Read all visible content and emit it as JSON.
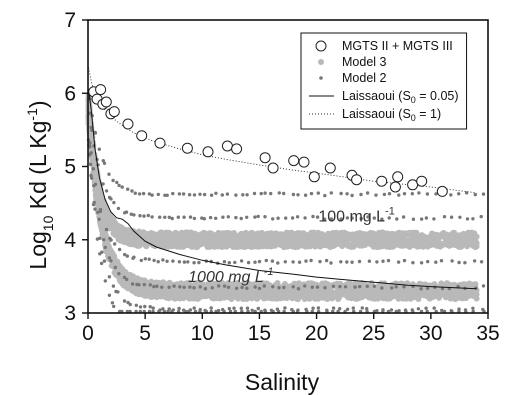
{
  "chart_data": {
    "type": "scatter",
    "xlabel": "Salinity",
    "ylabel": {
      "base": "Log",
      "sub": "10",
      "mid": " Kd (L Kg",
      "sup": "-1",
      "end": ")"
    },
    "xlim": [
      0,
      35
    ],
    "ylim": [
      3,
      7
    ],
    "xticks": [
      "0",
      "5",
      "10",
      "15",
      "20",
      "25",
      "30",
      "35"
    ],
    "yticks": [
      "3",
      "4",
      "5",
      "6",
      "7"
    ],
    "grid": false,
    "legend_position": "top-right",
    "legend": [
      {
        "label": "MGTS II + MGTS III",
        "marker": "open-circle"
      },
      {
        "label": "Model 3",
        "marker": "light-gray-dot"
      },
      {
        "label": "Model 2",
        "marker": "dark-gray-dot"
      },
      {
        "label": "Laissaoui (S",
        "sub": "0",
        "after": " = 0.05)",
        "marker": "solid-line"
      },
      {
        "label": "Laissaoui (S",
        "sub": "0",
        "after": " = 1)",
        "marker": "dotted-line"
      }
    ],
    "annotations": [
      {
        "text": "100 mg L",
        "sup": "-1",
        "x": 23.5,
        "y": 4.25
      },
      {
        "text": "1000 mg L",
        "sup": "-1",
        "x": 12.5,
        "y": 3.42
      }
    ],
    "series": [
      {
        "name": "MGTS II + MGTS III",
        "type": "scatter",
        "x": [
          0.5,
          0.8,
          1.1,
          1.3,
          1.6,
          2.0,
          2.3,
          3.5,
          4.7,
          6.3,
          8.7,
          10.5,
          12.2,
          13.0,
          15.5,
          16.2,
          18.0,
          18.9,
          19.8,
          21.2,
          23.1,
          23.5,
          25.7,
          26.9,
          27.1,
          28.4,
          29.2,
          31.0
        ],
        "y": [
          6.02,
          5.92,
          6.05,
          5.85,
          5.88,
          5.72,
          5.75,
          5.58,
          5.42,
          5.32,
          5.25,
          5.2,
          5.28,
          5.24,
          5.12,
          4.98,
          5.08,
          5.06,
          4.86,
          4.98,
          4.88,
          4.82,
          4.8,
          4.72,
          4.86,
          4.75,
          4.8,
          4.66
        ]
      },
      {
        "name": "Model 3",
        "type": "band",
        "curves": [
          {
            "label": "100 mg L-1",
            "a": 4.0,
            "b": 2.0,
            "c": 0.9,
            "width": 0.1
          },
          {
            "label": "1000 mg L-1",
            "a": 3.3,
            "b": 2.5,
            "c": 1.2,
            "width": 0.11
          }
        ],
        "xrange": [
          0.05,
          34
        ]
      },
      {
        "name": "Model 2",
        "type": "scatter-curves",
        "curves": [
          {
            "a": 4.3,
            "b": 1.6,
            "c": 1.1
          },
          {
            "a": 3.7,
            "b": 1.9,
            "c": 1.1
          },
          {
            "a": 3.35,
            "b": 2.2,
            "c": 1.1
          },
          {
            "a": 3.05,
            "b": 2.4,
            "c": 1.1
          },
          {
            "a": 2.75,
            "b": 2.7,
            "c": 1.1
          },
          {
            "a": 4.62,
            "b": 1.5,
            "c": 1.1
          }
        ],
        "xrange": [
          0.1,
          34.5
        ]
      },
      {
        "name": "Laissaoui (S0 = 0.05)",
        "type": "line",
        "x": [
          0.05,
          0.3,
          0.6,
          1.0,
          1.5,
          2.0,
          2.5,
          3.0,
          3.5,
          4.0,
          5.0,
          6.0,
          8.0,
          10.0,
          12.0,
          15.0,
          18.0,
          20.0,
          22.0,
          25.0,
          28.0,
          30.0,
          34.0
        ],
        "y": [
          6.05,
          5.75,
          5.25,
          4.85,
          4.55,
          4.38,
          4.3,
          4.28,
          4.22,
          4.12,
          3.98,
          3.9,
          3.8,
          3.72,
          3.66,
          3.58,
          3.53,
          3.49,
          3.46,
          3.42,
          3.38,
          3.36,
          3.33
        ]
      },
      {
        "name": "Laissaoui (S0 = 1)",
        "type": "line",
        "x": [
          0.05,
          0.3,
          0.6,
          1.0,
          1.5,
          2.0,
          3.0,
          4.0,
          5.0,
          6.0,
          8.0,
          10.0,
          12.0,
          15.0,
          18.0,
          20.0,
          25.0,
          30.0,
          34.0
        ],
        "y": [
          6.35,
          6.15,
          6.0,
          5.88,
          5.77,
          5.68,
          5.56,
          5.46,
          5.39,
          5.33,
          5.24,
          5.16,
          5.1,
          5.02,
          4.95,
          4.91,
          4.8,
          4.72,
          4.64
        ]
      }
    ]
  }
}
